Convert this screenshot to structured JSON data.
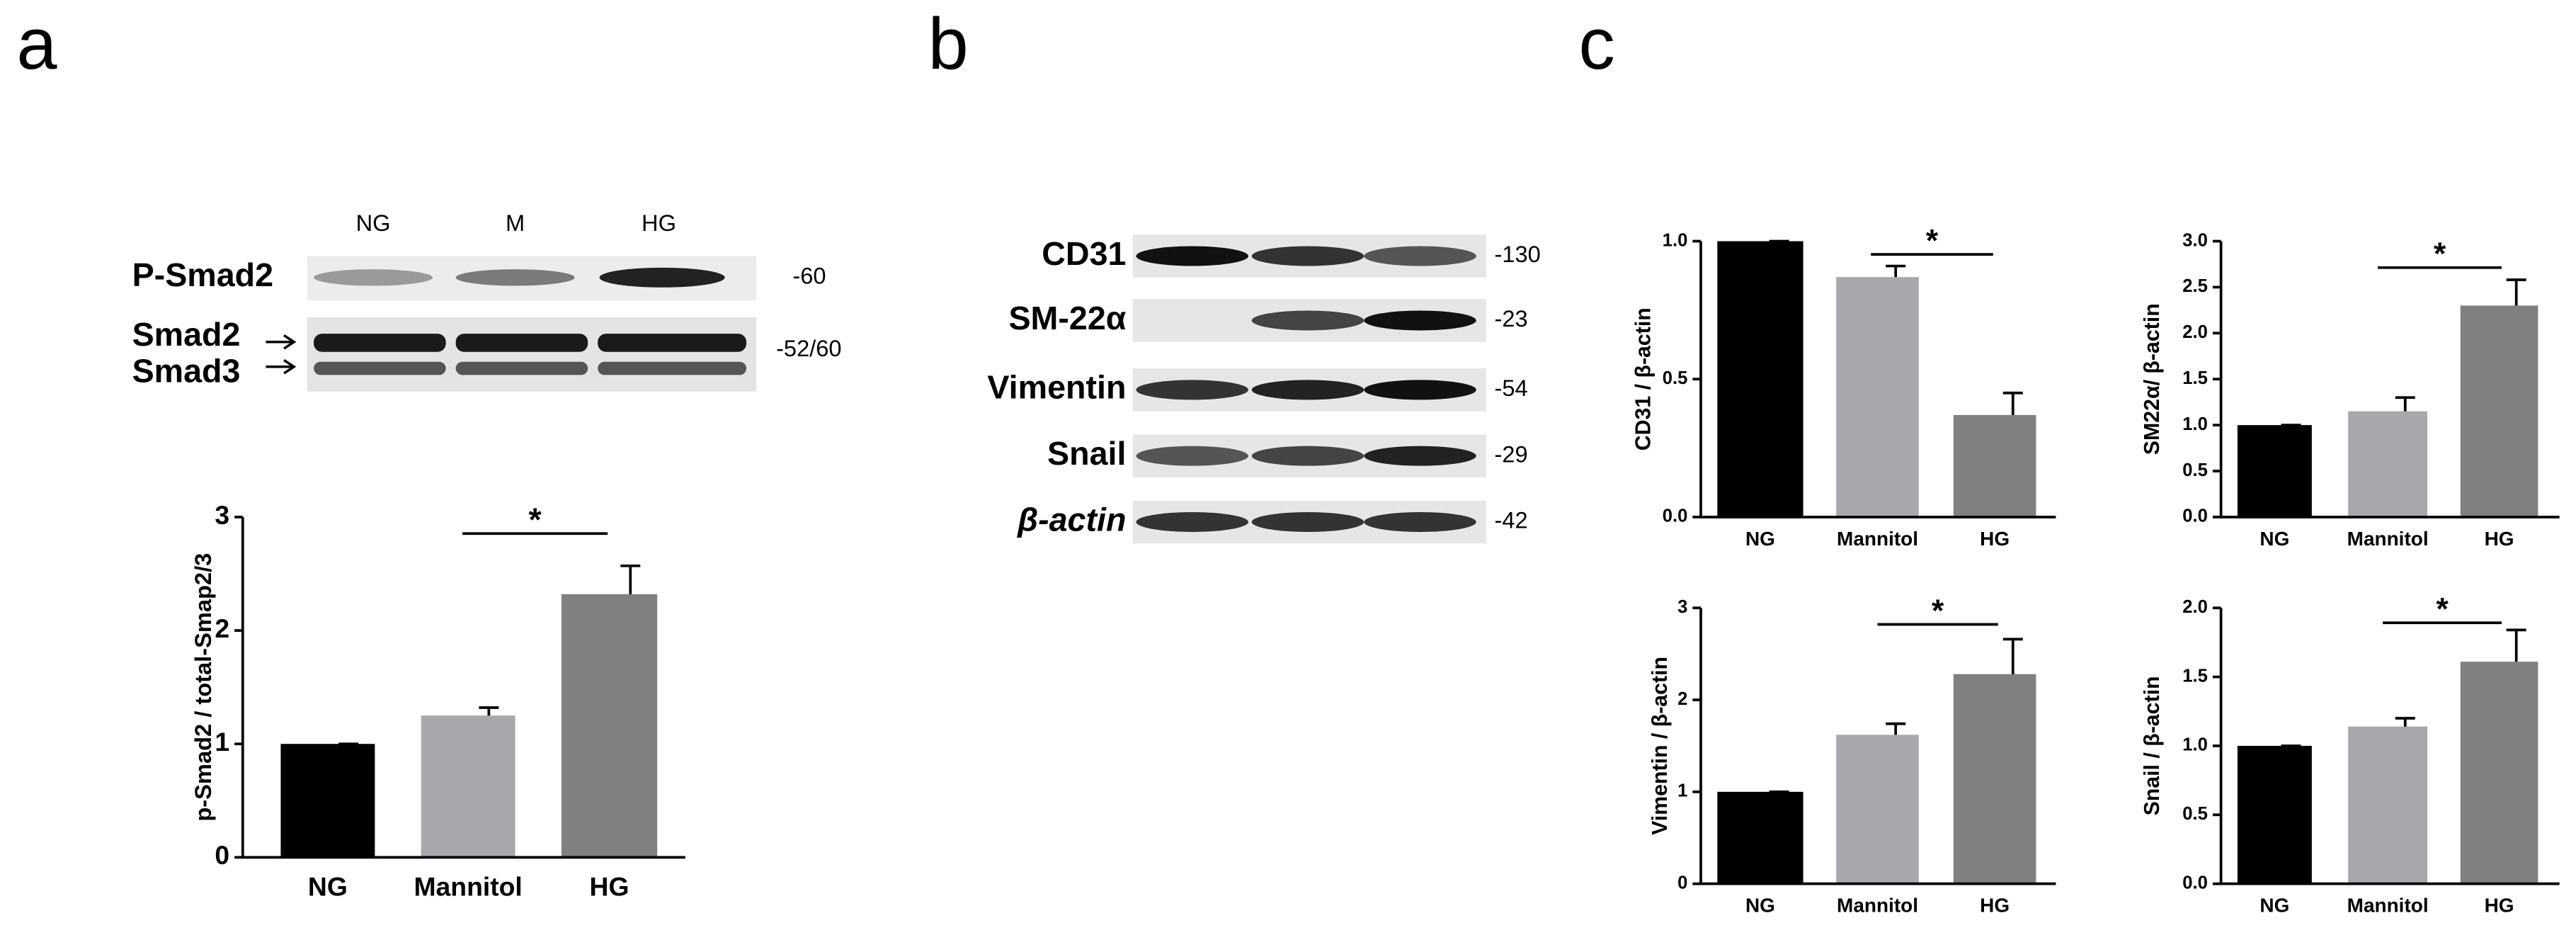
{
  "panel_labels": [
    "a",
    "b",
    "c"
  ],
  "blot_a": {
    "lanes": [
      "NG",
      "M",
      "HG"
    ],
    "rows": [
      {
        "label": "P-Smad2",
        "mw": "-60"
      },
      {
        "labels": [
          "Smad2",
          "Smad3"
        ],
        "mw": "-52/60"
      }
    ]
  },
  "blot_b": {
    "rows": [
      {
        "label": "CD31",
        "mw": "-130"
      },
      {
        "label": "SM-22α",
        "mw": "-23"
      },
      {
        "label": "Vimentin",
        "mw": "-54"
      },
      {
        "label": "Snail",
        "mw": "-29"
      },
      {
        "label": "β-actin",
        "mw": "-42"
      }
    ]
  },
  "chart_data": [
    {
      "type": "bar",
      "y_label": "p-Smad2 / total-Smap2/3",
      "categories": [
        "NG",
        "Mannitol",
        "HG"
      ],
      "values": [
        1,
        1.25,
        2.32
      ],
      "errors": [
        0,
        0.07,
        0.25
      ],
      "colors": [
        "#000000",
        "#a8a8ac",
        "#808080"
      ],
      "ylim": [
        0,
        3
      ],
      "yticks": [
        0,
        1,
        2,
        3
      ],
      "annotation": "*"
    },
    {
      "type": "bar",
      "y_label": "CD31 / β-actin",
      "categories": [
        "NG",
        "Mannitol",
        "HG"
      ],
      "values": [
        1.0,
        0.87,
        0.37
      ],
      "errors": [
        0,
        0.04,
        0.08
      ],
      "colors": [
        "#000000",
        "#a8a8ac",
        "#808080"
      ],
      "ylim": [
        0,
        1
      ],
      "yticks": [
        {
          "value": 0,
          "label": "0.0"
        },
        {
          "value": 0.5,
          "label": "0.5"
        },
        {
          "value": 1,
          "label": "1.0"
        }
      ],
      "annotation": "*"
    },
    {
      "type": "bar",
      "y_label": "SM22α/ β-actin",
      "categories": [
        "NG",
        "Mannitol",
        "HG"
      ],
      "values": [
        1,
        1.15,
        2.3
      ],
      "errors": [
        0,
        0.15,
        0.28
      ],
      "colors": [
        "#000000",
        "#a8a8ac",
        "#808080"
      ],
      "ylim": [
        0,
        3
      ],
      "yticks": [
        {
          "value": 0,
          "label": "0.0"
        },
        {
          "value": 0.5,
          "label": "0.5"
        },
        {
          "value": 1,
          "label": "1.0"
        },
        {
          "value": 1.5,
          "label": "1.5"
        },
        {
          "value": 2,
          "label": "2.0"
        },
        {
          "value": 2.5,
          "label": "2.5"
        },
        {
          "value": 3,
          "label": "3.0"
        }
      ],
      "annotation": "*"
    },
    {
      "type": "bar",
      "y_label": "Vimentin / β-actin",
      "categories": [
        "NG",
        "Mannitol",
        "HG"
      ],
      "values": [
        1,
        1.62,
        2.28
      ],
      "errors": [
        0,
        0.12,
        0.38
      ],
      "colors": [
        "#000000",
        "#a8a8ac",
        "#808080"
      ],
      "ylim": [
        0,
        3
      ],
      "yticks": [
        0,
        1,
        2,
        3
      ],
      "annotation": "*"
    },
    {
      "type": "bar",
      "y_label": "Snail / β-actin",
      "categories": [
        "NG",
        "Mannitol",
        "HG"
      ],
      "values": [
        1,
        1.14,
        1.61
      ],
      "errors": [
        0,
        0.06,
        0.23
      ],
      "colors": [
        "#000000",
        "#a8a8ac",
        "#808080"
      ],
      "ylim": [
        0,
        2
      ],
      "yticks": [
        {
          "value": 0,
          "label": "0.0"
        },
        {
          "value": 0.5,
          "label": "0.5"
        },
        {
          "value": 1,
          "label": "1.0"
        },
        {
          "value": 1.5,
          "label": "1.5"
        },
        {
          "value": 2,
          "label": "2.0"
        }
      ],
      "annotation": "*"
    }
  ]
}
